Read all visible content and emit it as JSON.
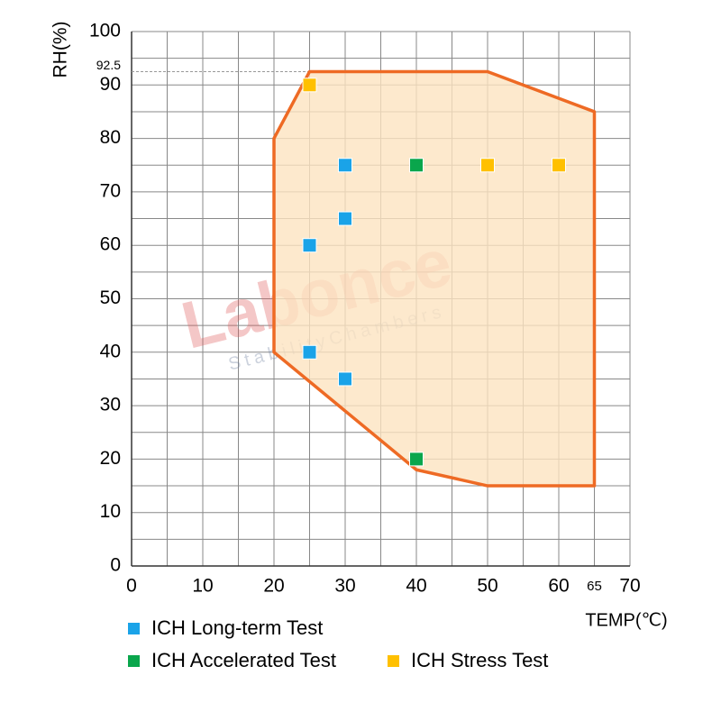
{
  "chart_data": {
    "type": "scatter",
    "xlabel": "TEMP(℃)",
    "ylabel": "RH(%)",
    "xlim": [
      0,
      70
    ],
    "xticks": [
      0,
      10,
      20,
      30,
      40,
      50,
      60,
      70
    ],
    "ylim": [
      0,
      100
    ],
    "yticks": [
      0,
      10,
      20,
      30,
      40,
      50,
      60,
      70,
      80,
      90,
      100
    ],
    "extra_xtick": 65,
    "extra_ytick": 92.5,
    "grid": true,
    "region": {
      "x": [
        25,
        50,
        65,
        65,
        50,
        40,
        20,
        20
      ],
      "y": [
        92.5,
        92.5,
        85,
        15,
        15,
        18,
        40,
        80
      ],
      "color": "#ee6a24",
      "fill": "#fde4c0"
    },
    "series": [
      {
        "name": "ICH Long-term Test",
        "color": "#1aa3e8",
        "x": [
          25,
          30,
          30,
          25,
          30
        ],
        "values": [
          60,
          65,
          75,
          40,
          35
        ]
      },
      {
        "name": "ICH Accelerated Test",
        "color": "#0aa64c",
        "x": [
          40,
          40
        ],
        "values": [
          75,
          20
        ]
      },
      {
        "name": "ICH Stress Test",
        "color": "#ffc000",
        "x": [
          25,
          50,
          60
        ],
        "values": [
          90,
          75,
          75
        ]
      }
    ],
    "watermark": {
      "title": "Labonce",
      "subtitle": "StabilityChambers"
    }
  }
}
